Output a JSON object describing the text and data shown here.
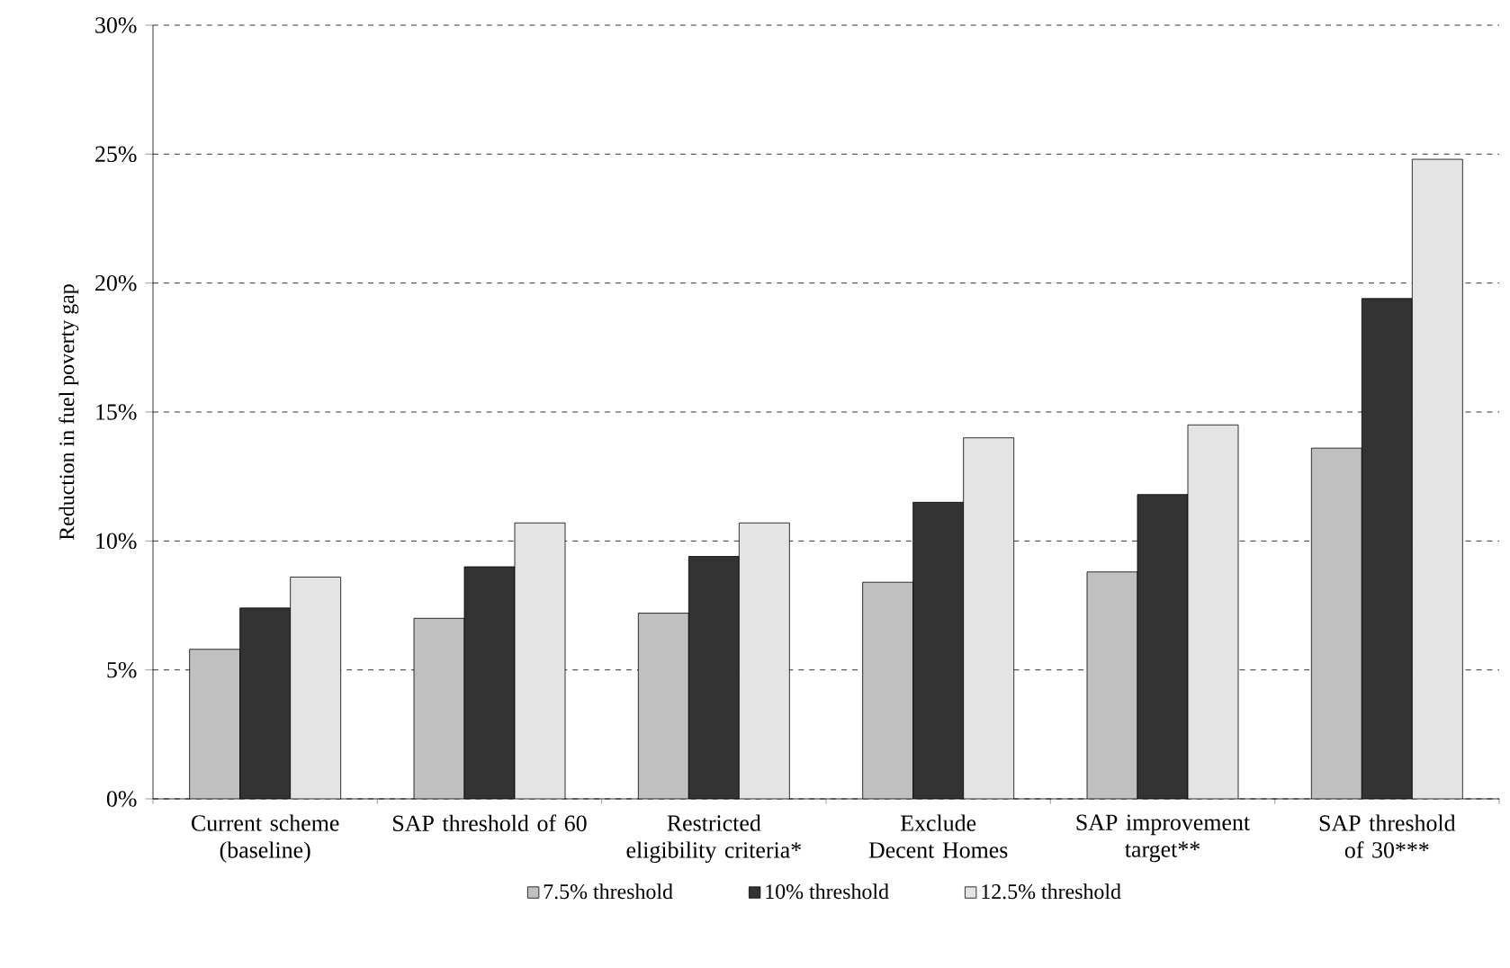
{
  "chart_data": {
    "type": "bar",
    "ylabel": "Reduction in fuel poverty gap",
    "categories": [
      "Current scheme (baseline)",
      "SAP threshold of 60",
      "Restricted eligibility criteria*",
      "Exclude Decent Homes",
      "SAP improvement target**",
      "SAP threshold of 30***"
    ],
    "series": [
      {
        "name": "7.5% threshold",
        "color": "#c0c0c0",
        "values": [
          5.8,
          7.0,
          7.2,
          8.4,
          8.8,
          13.6
        ]
      },
      {
        "name": "10% threshold",
        "color": "#333333",
        "values": [
          7.4,
          9.0,
          9.4,
          11.5,
          11.8,
          19.4
        ]
      },
      {
        "name": "12.5% threshold",
        "color": "#e4e4e4",
        "values": [
          8.6,
          10.7,
          10.7,
          14.0,
          14.5,
          24.8
        ]
      }
    ],
    "ylim": [
      0,
      30
    ],
    "yticks": [
      {
        "value": 0,
        "label": "0%"
      },
      {
        "value": 5,
        "label": "5%"
      },
      {
        "value": 10,
        "label": "10%"
      },
      {
        "value": 15,
        "label": "15%"
      },
      {
        "value": 20,
        "label": "20%"
      },
      {
        "value": 25,
        "label": "25%"
      },
      {
        "value": 30,
        "label": "30%"
      }
    ],
    "grid": "y",
    "legend": "bottom"
  }
}
